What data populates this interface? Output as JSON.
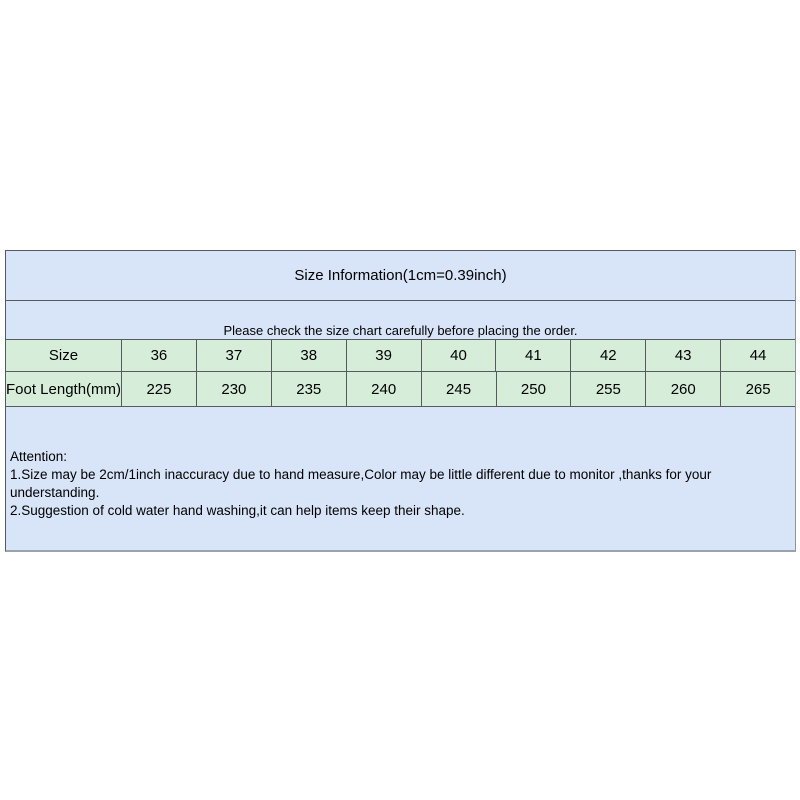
{
  "size_chart": {
    "title": "Size Information(1cm=0.39inch)",
    "subtitle": "Please check the size chart carefully before placing the order.",
    "table": {
      "row_headers": [
        "Size",
        "Foot Length(mm)"
      ],
      "sizes": [
        "36",
        "37",
        "38",
        "39",
        "40",
        "41",
        "42",
        "43",
        "44"
      ],
      "foot_lengths": [
        "225",
        "230",
        "235",
        "240",
        "245",
        "250",
        "255",
        "260",
        "265"
      ]
    },
    "attention": {
      "lines": [
        "Attention:",
        "1.Size may be 2cm/1inch inaccuracy due to hand measure,Color may be little different due to monitor ,thanks for your understanding.",
        "2.Suggestion of cold water hand washing,it can help items keep their shape."
      ]
    },
    "colors": {
      "header_bg": "#d8e4f8",
      "data_row_bg": "#d6eed9",
      "inner_border": "#565a5e",
      "outer_bottom_border": "#9aa3ad",
      "text": "#000000",
      "page_bg": "#ffffff"
    }
  }
}
